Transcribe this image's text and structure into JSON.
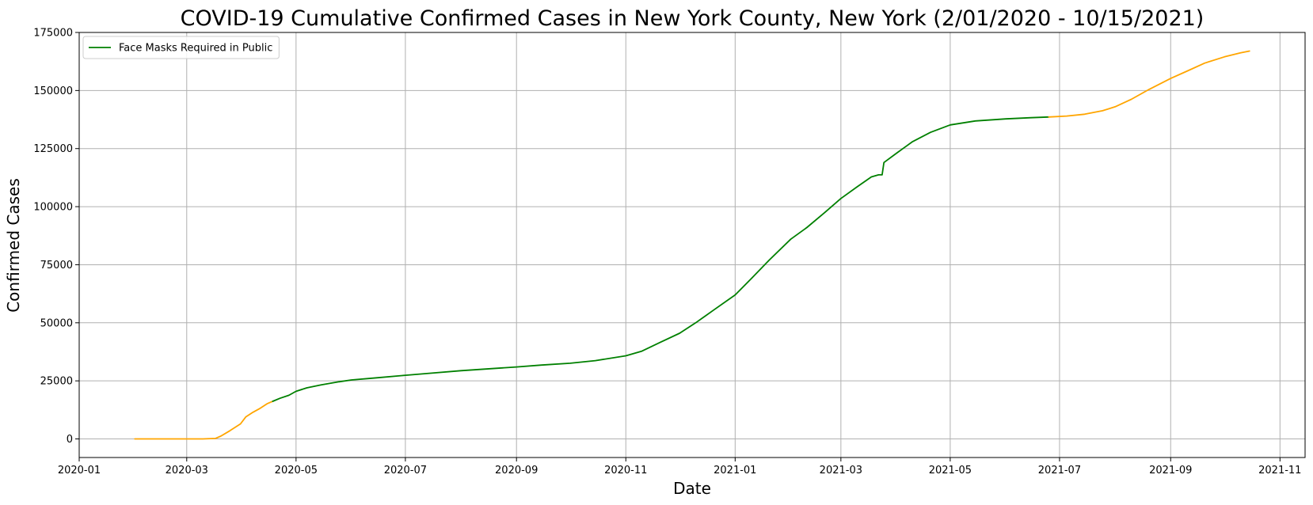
{
  "chart_data": {
    "type": "line",
    "title": "COVID-19 Cumulative Confirmed Cases in New York County, New York (2/01/2020 - 10/15/2021)",
    "xlabel": "Date",
    "ylabel": "Confirmed Cases",
    "xlim": [
      "2020-01-01",
      "2021-11-15"
    ],
    "ylim": [
      -8000,
      175000
    ],
    "x_ticks": [
      "2020-01",
      "2020-03",
      "2020-05",
      "2020-07",
      "2020-09",
      "2020-11",
      "2021-01",
      "2021-03",
      "2021-05",
      "2021-07",
      "2021-09",
      "2021-11"
    ],
    "y_ticks": [
      0,
      25000,
      50000,
      75000,
      100000,
      125000,
      150000,
      175000
    ],
    "grid": true,
    "legend_position": "top-left",
    "series": [
      {
        "name": "",
        "color": "#ffa500",
        "points": [
          [
            "2020-02-01",
            0
          ],
          [
            "2020-02-20",
            0
          ],
          [
            "2020-03-01",
            1
          ],
          [
            "2020-03-10",
            20
          ],
          [
            "2020-03-17",
            200
          ],
          [
            "2020-03-20",
            1200
          ],
          [
            "2020-03-25",
            3500
          ],
          [
            "2020-03-31",
            6500
          ],
          [
            "2020-04-03",
            9500
          ],
          [
            "2020-04-07",
            11500
          ],
          [
            "2020-04-11",
            13200
          ],
          [
            "2020-04-15",
            15200
          ],
          [
            "2020-04-18",
            16200
          ]
        ]
      },
      {
        "name": "Face Masks Required in Public",
        "color": "#008000",
        "points": [
          [
            "2020-04-18",
            16200
          ],
          [
            "2020-04-22",
            17500
          ],
          [
            "2020-04-27",
            18800
          ],
          [
            "2020-05-01",
            20500
          ],
          [
            "2020-05-07",
            22000
          ],
          [
            "2020-05-15",
            23300
          ],
          [
            "2020-05-25",
            24600
          ],
          [
            "2020-06-01",
            25400
          ],
          [
            "2020-06-15",
            26300
          ],
          [
            "2020-07-01",
            27400
          ],
          [
            "2020-07-15",
            28300
          ],
          [
            "2020-08-01",
            29400
          ],
          [
            "2020-08-15",
            30100
          ],
          [
            "2020-09-01",
            31000
          ],
          [
            "2020-09-15",
            31800
          ],
          [
            "2020-10-01",
            32600
          ],
          [
            "2020-10-15",
            33700
          ],
          [
            "2020-11-01",
            35800
          ],
          [
            "2020-11-10",
            37800
          ],
          [
            "2020-11-20",
            41500
          ],
          [
            "2020-12-01",
            45500
          ],
          [
            "2020-12-10",
            50000
          ],
          [
            "2020-12-20",
            55500
          ],
          [
            "2021-01-01",
            62000
          ],
          [
            "2021-01-10",
            69000
          ],
          [
            "2021-01-20",
            77000
          ],
          [
            "2021-02-01",
            86000
          ],
          [
            "2021-02-10",
            91000
          ],
          [
            "2021-02-20",
            97500
          ],
          [
            "2021-03-01",
            103500
          ],
          [
            "2021-03-10",
            108500
          ],
          [
            "2021-03-18",
            112800
          ],
          [
            "2021-03-22",
            113700
          ],
          [
            "2021-03-24",
            113700
          ],
          [
            "2021-03-25",
            119000
          ],
          [
            "2021-04-01",
            123000
          ],
          [
            "2021-04-10",
            128000
          ],
          [
            "2021-04-20",
            132000
          ],
          [
            "2021-05-01",
            135200
          ],
          [
            "2021-05-15",
            136900
          ],
          [
            "2021-06-01",
            137800
          ],
          [
            "2021-06-15",
            138300
          ],
          [
            "2021-06-25",
            138600
          ]
        ]
      },
      {
        "name": "",
        "color": "#ffa500",
        "points": [
          [
            "2021-06-25",
            138600
          ],
          [
            "2021-07-05",
            139000
          ],
          [
            "2021-07-15",
            139800
          ],
          [
            "2021-07-25",
            141300
          ],
          [
            "2021-08-01",
            143000
          ],
          [
            "2021-08-10",
            146200
          ],
          [
            "2021-08-20",
            150500
          ],
          [
            "2021-09-01",
            155200
          ],
          [
            "2021-09-10",
            158300
          ],
          [
            "2021-09-20",
            161800
          ],
          [
            "2021-10-01",
            164500
          ],
          [
            "2021-10-10",
            166200
          ],
          [
            "2021-10-15",
            167000
          ]
        ]
      }
    ]
  }
}
